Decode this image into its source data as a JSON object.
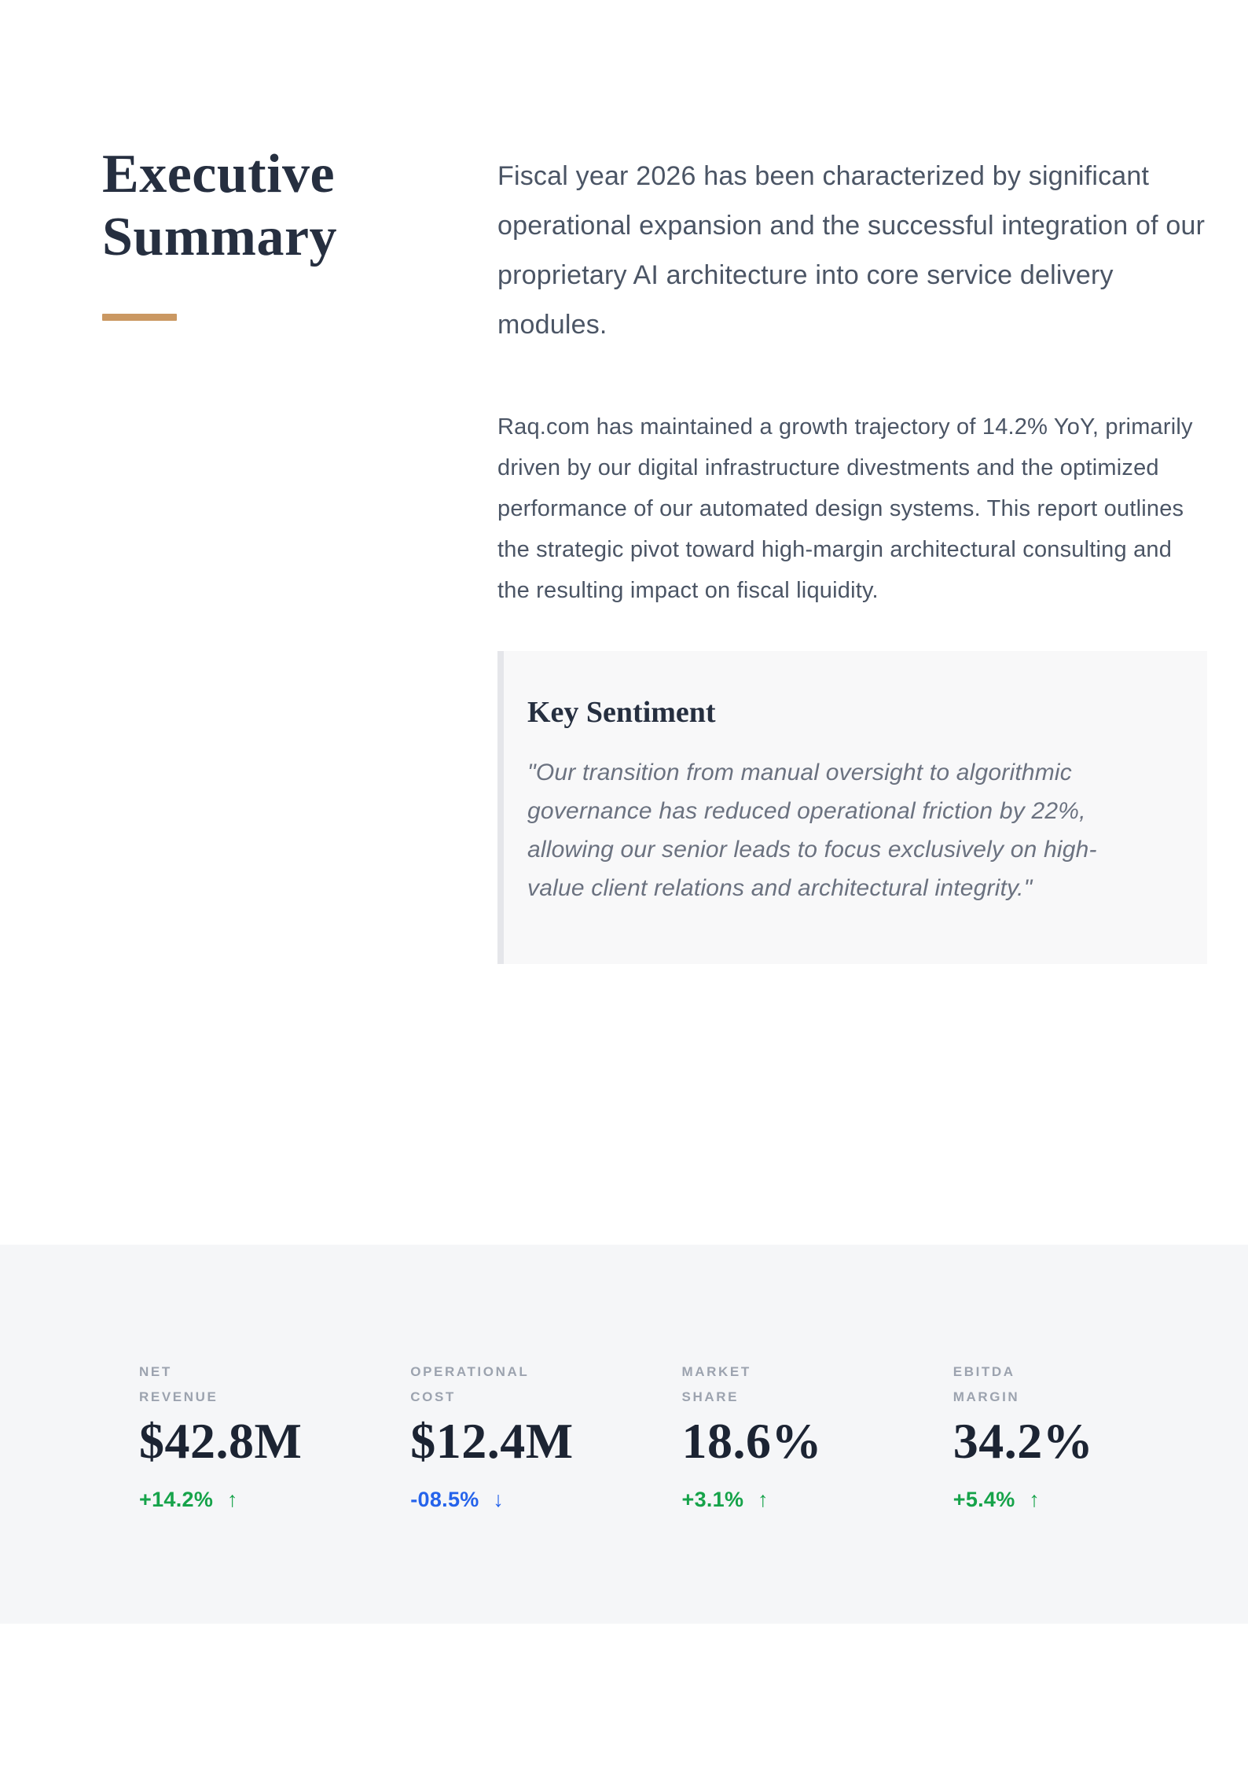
{
  "header": {
    "title": "Executive Summary",
    "accent_color": "#ca9862"
  },
  "summary": {
    "lead": "Fiscal year 2026 has been characterized by significant operational expansion and the successful integration of our proprietary AI architecture into core service delivery modules.",
    "body": "Raq.com has maintained a growth trajectory of 14.2% YoY, primarily driven by our digital infrastructure divestments and the optimized performance of our automated design systems. This report outlines the strategic pivot toward high-margin architectural consulting and the resulting impact on fiscal liquidity."
  },
  "key_sentiment": {
    "heading": "Key Sentiment",
    "quote": "\"Our transition from manual oversight to algorithmic governance has reduced operational friction by 22%, allowing our senior leads to focus exclusively on high-value client relations and architectural integrity.\""
  },
  "stats": {
    "items": [
      {
        "label_lines": [
          "NET",
          "REVENUE"
        ],
        "value": "$42.8M",
        "change": "+14.2%",
        "arrow": "↑",
        "direction": "up",
        "change_color": "#16a34a"
      },
      {
        "label_lines": [
          "OPERATIONAL",
          "COST"
        ],
        "value": "$12.4M",
        "change": "-08.5%",
        "arrow": "↓",
        "direction": "down",
        "change_color": "#2563eb"
      },
      {
        "label_lines": [
          "MARKET",
          "SHARE"
        ],
        "value": "18.6%",
        "change": "+3.1%",
        "arrow": "↑",
        "direction": "up",
        "change_color": "#16a34a"
      },
      {
        "label_lines": [
          "EBITDA",
          "MARGIN"
        ],
        "value": "34.2%",
        "change": "+5.4%",
        "arrow": "↑",
        "direction": "up",
        "change_color": "#16a34a"
      }
    ]
  }
}
